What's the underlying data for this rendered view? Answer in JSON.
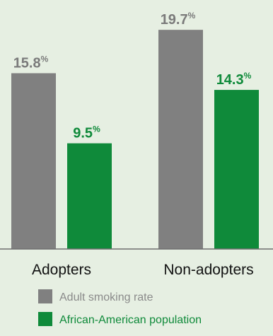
{
  "chart_data": {
    "type": "bar",
    "categories": [
      "Adopters",
      "Non-adopters"
    ],
    "series": [
      {
        "name": "Adult smoking rate",
        "values": [
          15.8,
          19.7
        ],
        "color": "#808080",
        "label_color": "#7a7a7a"
      },
      {
        "name": "African-American population",
        "values": [
          9.5,
          14.3
        ],
        "color": "#0f8a3a",
        "label_color": "#0f8a3a"
      }
    ],
    "value_suffix": "%",
    "ylim": [
      0,
      22
    ],
    "grid": false,
    "legend_position": "bottom",
    "title": "",
    "xlabel": "",
    "ylabel": ""
  },
  "colors": {
    "background": "#e6efe2",
    "baseline": "#6e6e6e",
    "legend_text": "#8a8a8a"
  }
}
